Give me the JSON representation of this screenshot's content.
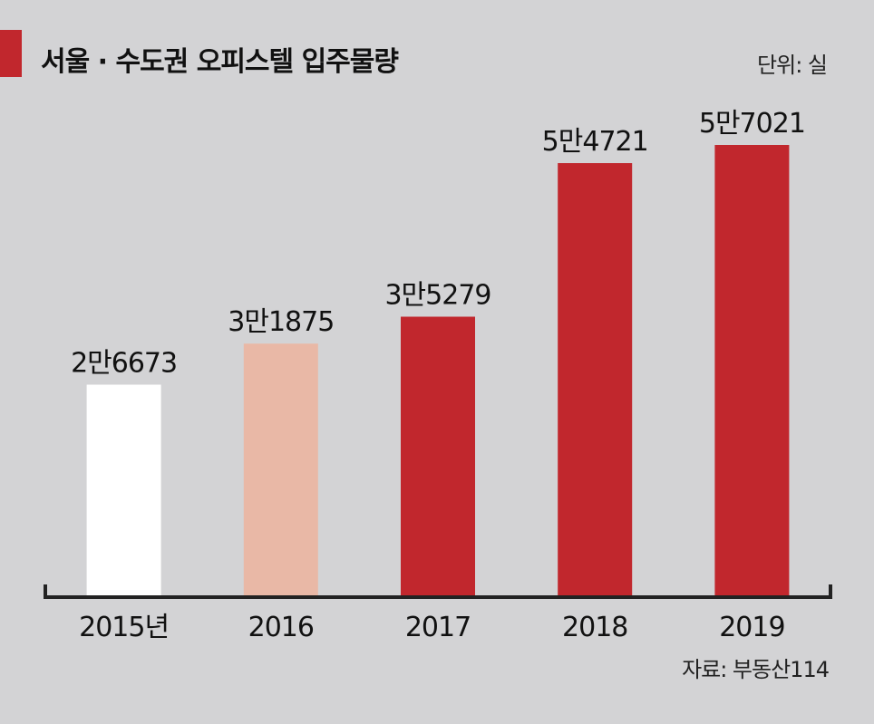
{
  "header": {
    "title": "서울 · 수도권 오피스텔 입주물량",
    "unit": "단위: 실"
  },
  "footer": {
    "source": "자료: 부동산114"
  },
  "colors": {
    "background": "#d3d3d5",
    "accent": "#c1272d",
    "bar_2015": "#ffffff",
    "bar_2016": "#e9b8a6",
    "bar_default": "#c1272d",
    "axis": "#222222"
  },
  "chart_data": {
    "type": "bar",
    "title": "서울 · 수도권 오피스텔 입주물량",
    "unit": "단위: 실",
    "categories": [
      "2015년",
      "2016",
      "2017",
      "2018",
      "2019"
    ],
    "values": [
      26673,
      31875,
      35279,
      54721,
      57021
    ],
    "value_labels": [
      "2만6673",
      "3만1875",
      "3만5279",
      "5만4721",
      "5만7021"
    ],
    "bar_colors": [
      "#ffffff",
      "#e9b8a6",
      "#c1272d",
      "#c1272d",
      "#c1272d"
    ],
    "ylim": [
      0,
      60000
    ],
    "grid": false,
    "legend": "none"
  }
}
